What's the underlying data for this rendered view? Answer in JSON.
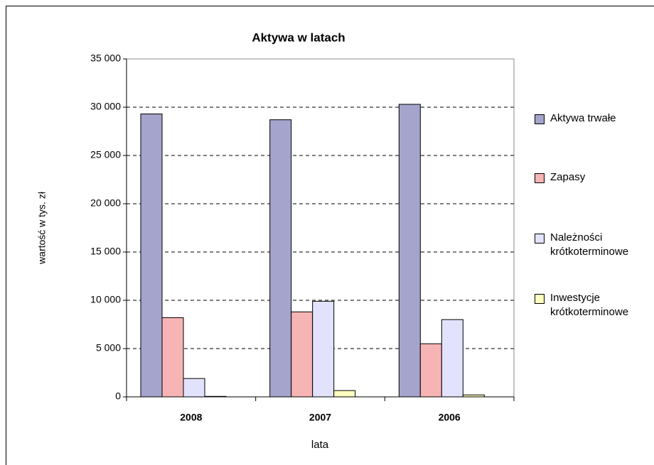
{
  "chart_data": {
    "type": "bar",
    "title": "Aktywa w latach",
    "x_label": "lata",
    "y_label": "wartość w  tys. zł",
    "categories": [
      "2008",
      "2007",
      "2006"
    ],
    "series": [
      {
        "name": "Aktywa trwałe",
        "color": "#a4a4cc",
        "values": [
          29300,
          28700,
          30300
        ]
      },
      {
        "name": "Zapasy",
        "color": "#f6b4b4",
        "values": [
          8200,
          8800,
          5500
        ]
      },
      {
        "name": "Należności krótkoterminowe",
        "color": "#e2e2fc",
        "values": [
          1900,
          9900,
          8000
        ]
      },
      {
        "name": "Inwestycje krótkoterminowe",
        "color": "#ffffc0",
        "values": [
          50,
          650,
          200
        ]
      }
    ],
    "ylim": [
      0,
      35000
    ],
    "yticks": [
      0,
      {
        "value": 5000,
        "label": "5 000"
      },
      {
        "value": 10000,
        "label": "10 000"
      },
      {
        "value": 15000,
        "label": "15 000"
      },
      {
        "value": 20000,
        "label": "20 000"
      },
      {
        "value": 25000,
        "label": "25 000"
      },
      {
        "value": 30000,
        "label": "30 000"
      },
      {
        "value": 35000,
        "label": "35 000"
      }
    ],
    "grid": true,
    "legend": "right"
  }
}
